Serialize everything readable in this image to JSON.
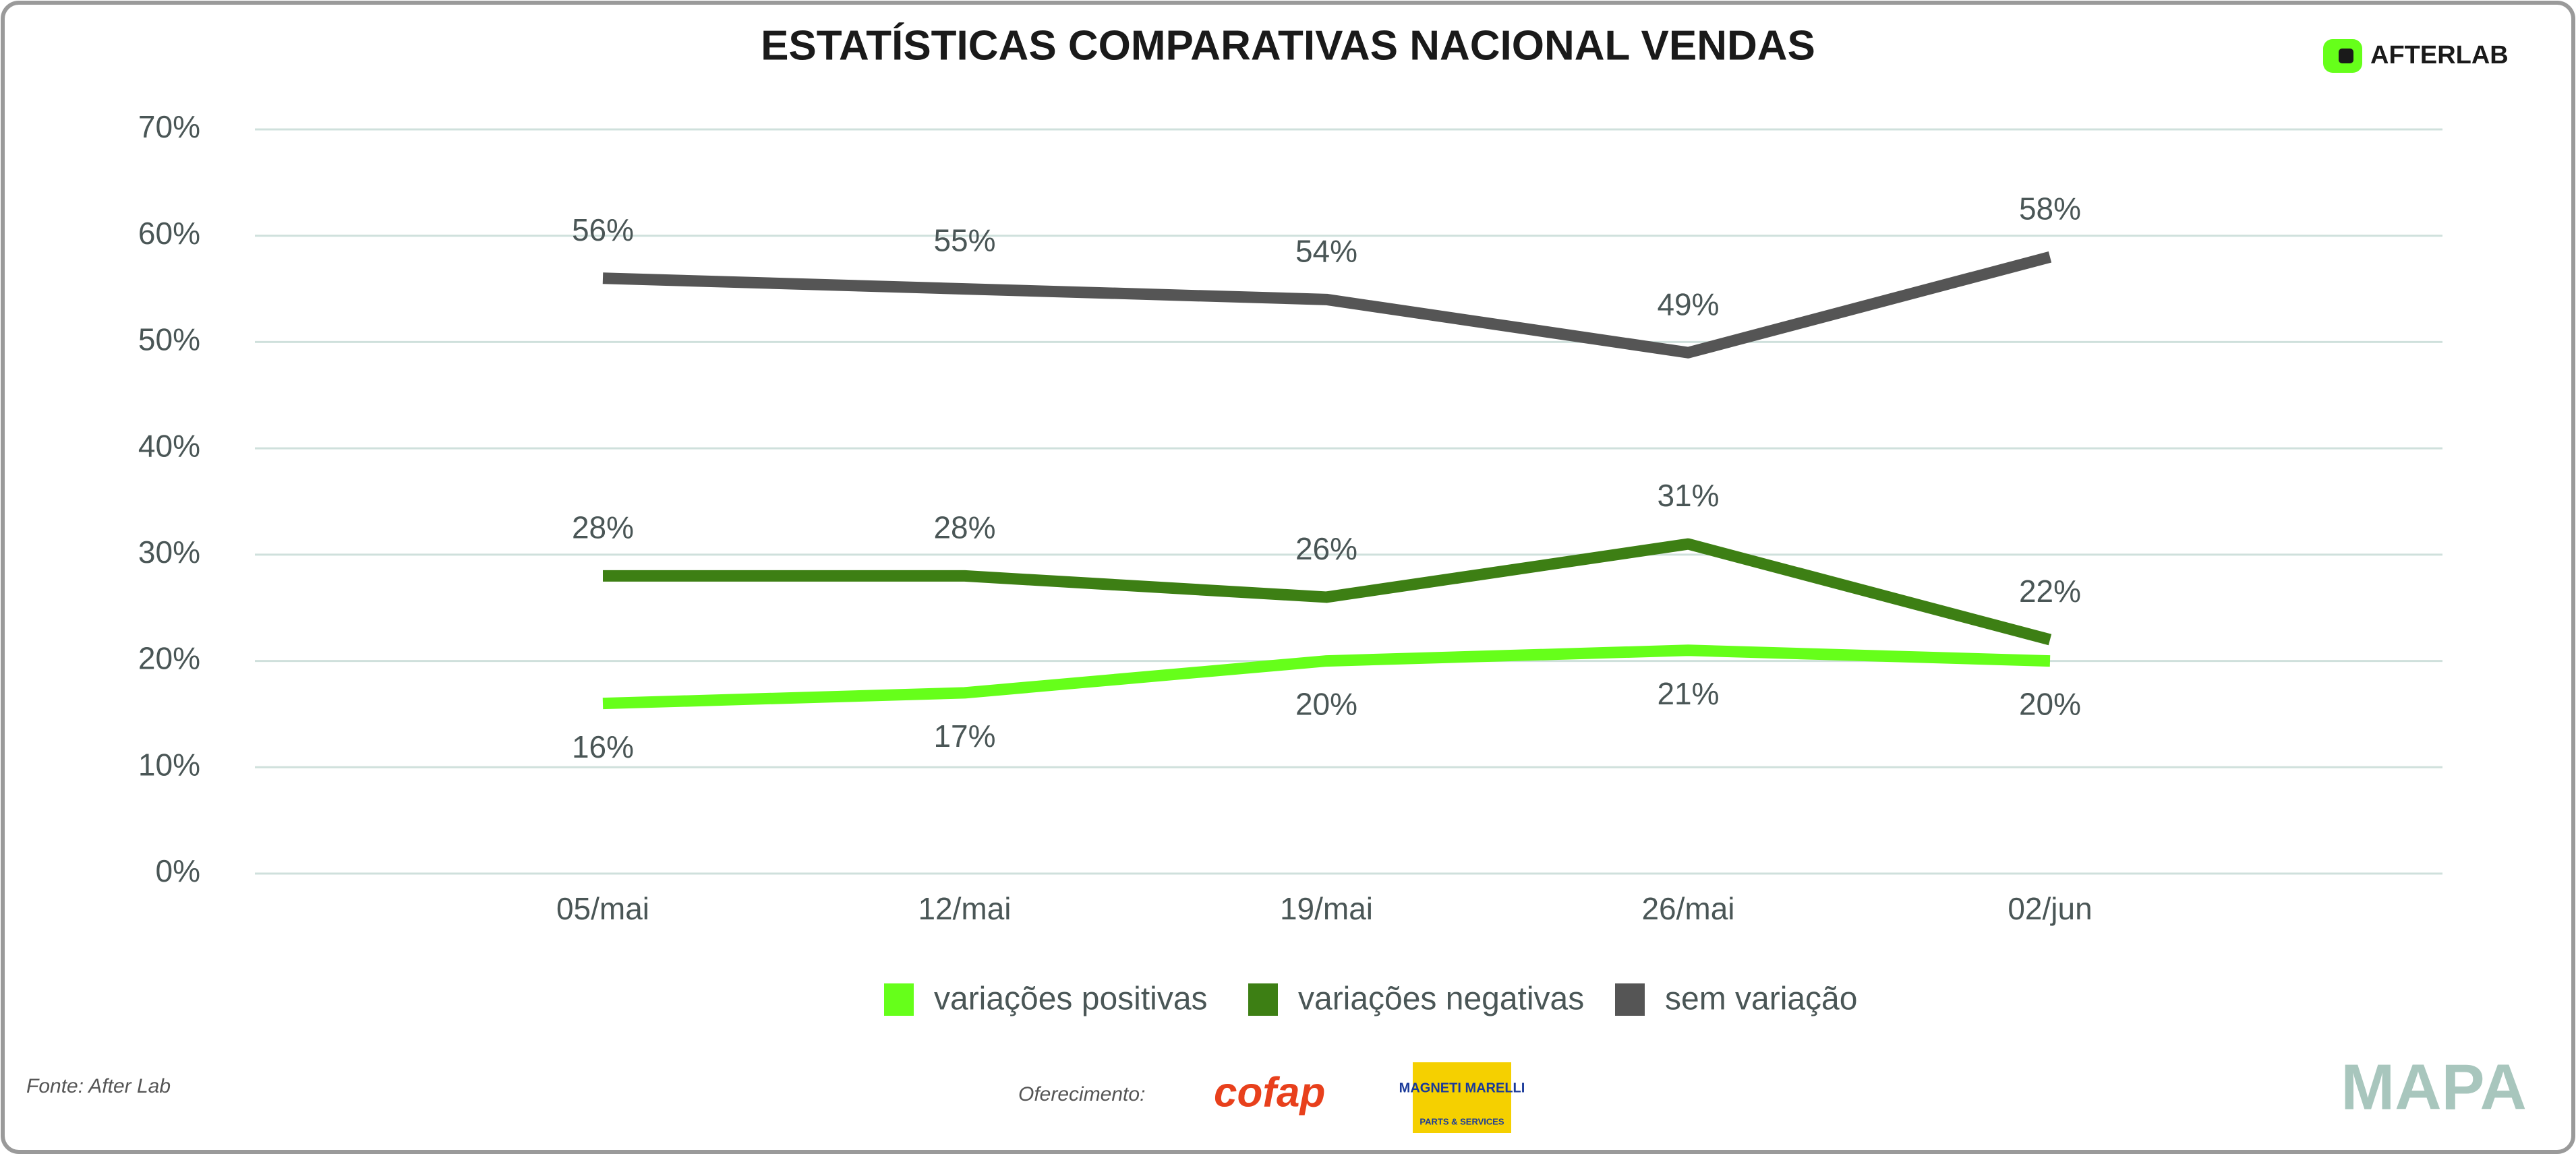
{
  "chart_data": {
    "type": "line",
    "title": "ESTATÍSTICAS COMPARATIVAS NACIONAL VENDAS",
    "categories": [
      "05/mai",
      "12/mai",
      "19/mai",
      "26/mai",
      "02/jun"
    ],
    "series": [
      {
        "name": "variações positivas",
        "color": "#66ff1a",
        "values": [
          16,
          17,
          20,
          21,
          20
        ],
        "value_labels": [
          "16%",
          "17%",
          "20%",
          "21%",
          "20%"
        ]
      },
      {
        "name": "variações negativas",
        "color": "#3d7f14",
        "values": [
          28,
          28,
          26,
          31,
          22
        ],
        "value_labels": [
          "28%",
          "28%",
          "26%",
          "31%",
          "22%"
        ]
      },
      {
        "name": "sem variação",
        "color": "#555555",
        "values": [
          56,
          55,
          54,
          49,
          58
        ],
        "value_labels": [
          "56%",
          "55%",
          "54%",
          "49%",
          "58%"
        ]
      }
    ],
    "ylim": [
      0,
      70
    ],
    "yticks": [
      {
        "value": 0,
        "label": "0%"
      },
      {
        "value": 10,
        "label": "10%"
      },
      {
        "value": 20,
        "label": "20%"
      },
      {
        "value": 30,
        "label": "30%"
      },
      {
        "value": 40,
        "label": "40%"
      },
      {
        "value": 50,
        "label": "50%"
      },
      {
        "value": 60,
        "label": "60%"
      },
      {
        "value": 70,
        "label": "70%"
      }
    ],
    "grid": true,
    "legend": "bottom"
  },
  "brand": "AFTERLAB",
  "source": "Fonte: After Lab",
  "sponsor_label": "Oferecimento:",
  "sponsors": [
    "cofap",
    "MAGNETI MARELLI",
    "PARTS & SERVICES"
  ],
  "footer_logo": "MAPA"
}
